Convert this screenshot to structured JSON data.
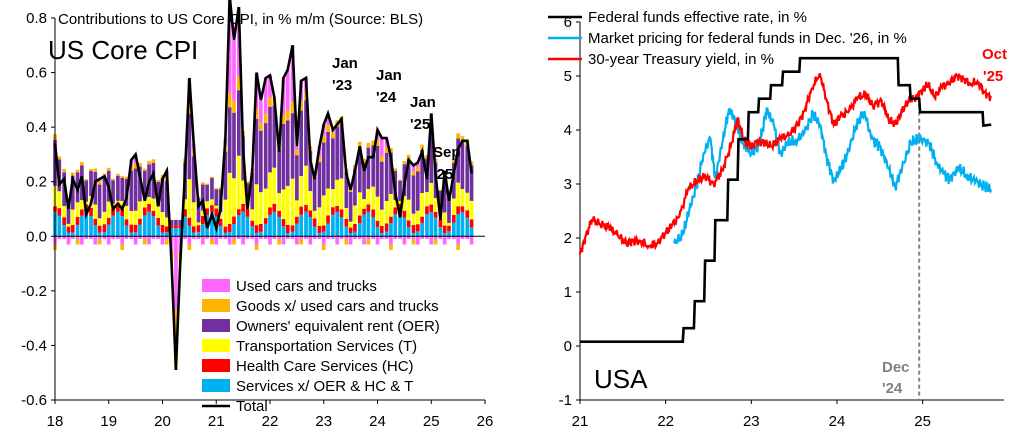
{
  "chart_data": [
    {
      "type": "bar",
      "title": "US Core CPI",
      "subtitle": "Contributions to US Core CPI, in % m/m (Source: BLS)",
      "ylim": [
        -0.6,
        0.8
      ],
      "yticks": [
        "0.8",
        "0.6",
        "0.4",
        "0.2",
        "0.0",
        "-0.2",
        "-0.4",
        "-0.6"
      ],
      "xticks": [
        "18",
        "19",
        "20",
        "21",
        "22",
        "23",
        "24",
        "25",
        "26"
      ],
      "x_range": [
        2018.0,
        2026.0
      ],
      "stacked": true,
      "series": [
        {
          "name": "Used cars and trucks",
          "color": "#ff66ff"
        },
        {
          "name": "Goods x/ used cars and trucks",
          "color": "#ffb400"
        },
        {
          "name": "Owners' equivalent rent (OER)",
          "color": "#7030a0"
        },
        {
          "name": "Transportation Services (T)",
          "color": "#ffff00"
        },
        {
          "name": "Health Care Services (HC)",
          "color": "#ff0000"
        },
        {
          "name": "Services x/ OER & HC & T",
          "color": "#00b0f0"
        },
        {
          "name": "Total",
          "color": "#000000"
        }
      ],
      "total_line": [
        [
          "2018.00",
          0.34
        ],
        [
          "2018.08",
          0.19
        ],
        [
          "2018.17",
          0.21
        ],
        [
          "2018.25",
          0.1
        ],
        [
          "2018.33",
          0.21
        ],
        [
          "2018.42",
          0.17
        ],
        [
          "2018.50",
          0.22
        ],
        [
          "2018.58",
          0.08
        ],
        [
          "2018.67",
          0.12
        ],
        [
          "2018.75",
          0.2
        ],
        [
          "2018.83",
          0.21
        ],
        [
          "2018.92",
          0.22
        ],
        [
          "2019.00",
          0.18
        ],
        [
          "2019.08",
          0.1
        ],
        [
          "2019.17",
          0.12
        ],
        [
          "2019.25",
          0.1
        ],
        [
          "2019.33",
          0.14
        ],
        [
          "2019.42",
          0.28
        ],
        [
          "2019.50",
          0.3
        ],
        [
          "2019.58",
          0.22
        ],
        [
          "2019.67",
          0.13
        ],
        [
          "2019.75",
          0.2
        ],
        [
          "2019.83",
          0.23
        ],
        [
          "2019.92",
          0.11
        ],
        [
          "2020.00",
          0.21
        ],
        [
          "2020.08",
          0.24
        ],
        [
          "2020.17",
          -0.1
        ],
        [
          "2020.25",
          -0.49
        ],
        [
          "2020.33",
          -0.1
        ],
        [
          "2020.42",
          0.24
        ],
        [
          "2020.50",
          0.58
        ],
        [
          "2020.58",
          0.34
        ],
        [
          "2020.67",
          0.11
        ],
        [
          "2020.75",
          0.13
        ],
        [
          "2020.83",
          0.03
        ],
        [
          "2020.92",
          0.08
        ],
        [
          "2021.00",
          0.03
        ],
        [
          "2021.08",
          0.1
        ],
        [
          "2021.17",
          0.36
        ],
        [
          "2021.25",
          0.88
        ],
        [
          "2021.33",
          0.72
        ],
        [
          "2021.42",
          0.84
        ],
        [
          "2021.50",
          0.32
        ],
        [
          "2021.58",
          0.1
        ],
        [
          "2021.67",
          0.24
        ],
        [
          "2021.75",
          0.6
        ],
        [
          "2021.83",
          0.5
        ],
        [
          "2021.92",
          0.58
        ],
        [
          "2022.00",
          0.59
        ],
        [
          "2022.08",
          0.51
        ],
        [
          "2022.17",
          0.31
        ],
        [
          "2022.25",
          0.58
        ],
        [
          "2022.33",
          0.61
        ],
        [
          "2022.42",
          0.7
        ],
        [
          "2022.50",
          0.33
        ],
        [
          "2022.58",
          0.57
        ],
        [
          "2022.67",
          0.58
        ],
        [
          "2022.75",
          0.28
        ],
        [
          "2022.83",
          0.21
        ],
        [
          "2022.92",
          0.33
        ],
        [
          "2023.00",
          0.41
        ],
        [
          "2023.08",
          0.45
        ],
        [
          "2023.17",
          0.39
        ],
        [
          "2023.25",
          0.41
        ],
        [
          "2023.33",
          0.43
        ],
        [
          "2023.42",
          0.23
        ],
        [
          "2023.50",
          0.17
        ],
        [
          "2023.58",
          0.24
        ],
        [
          "2023.67",
          0.33
        ],
        [
          "2023.75",
          0.24
        ],
        [
          "2023.83",
          0.29
        ],
        [
          "2023.92",
          0.29
        ],
        [
          "2024.00",
          0.39
        ],
        [
          "2024.08",
          0.36
        ],
        [
          "2024.17",
          0.36
        ],
        [
          "2024.25",
          0.29
        ],
        [
          "2024.33",
          0.16
        ],
        [
          "2024.42",
          0.07
        ],
        [
          "2024.50",
          0.19
        ],
        [
          "2024.58",
          0.28
        ],
        [
          "2024.67",
          0.26
        ],
        [
          "2024.75",
          0.27
        ],
        [
          "2024.83",
          0.31
        ],
        [
          "2024.92",
          0.21
        ],
        [
          "2025.00",
          0.45
        ],
        [
          "2025.08",
          0.23
        ],
        [
          "2025.17",
          0.06
        ],
        [
          "2025.25",
          0.24
        ],
        [
          "2025.33",
          0.13
        ],
        [
          "2025.42",
          0.23
        ],
        [
          "2025.50",
          0.32
        ],
        [
          "2025.58",
          0.35
        ],
        [
          "2025.67",
          0.35
        ],
        [
          "2025.75",
          0.23
        ]
      ],
      "annotations": [
        {
          "text": "Jan",
          "text2": "'23"
        },
        {
          "text": "Jan",
          "text2": "'24"
        },
        {
          "text": "Jan",
          "text2": "'25"
        },
        {
          "text": "Sep",
          "text2": "'25"
        }
      ]
    },
    {
      "type": "line",
      "title": "USA",
      "ylim": [
        -1,
        6
      ],
      "yticks": [
        "6",
        "5",
        "4",
        "3",
        "2",
        "1",
        "0",
        "-1"
      ],
      "xticks": [
        "21",
        "22",
        "23",
        "24",
        "25"
      ],
      "x_range": [
        2021.0,
        2025.95
      ],
      "series": [
        {
          "name": "Federal funds effective rate, in %",
          "color": "#000000",
          "values": [
            [
              "2021.00",
              0.08
            ],
            [
              "2021.90",
              0.08
            ],
            [
              "2022.20",
              0.08
            ],
            [
              "2022.21",
              0.33
            ],
            [
              "2022.33",
              0.33
            ],
            [
              "2022.34",
              0.83
            ],
            [
              "2022.45",
              0.83
            ],
            [
              "2022.46",
              1.58
            ],
            [
              "2022.57",
              1.58
            ],
            [
              "2022.58",
              2.33
            ],
            [
              "2022.72",
              2.33
            ],
            [
              "2022.73",
              3.08
            ],
            [
              "2022.84",
              3.08
            ],
            [
              "2022.85",
              3.83
            ],
            [
              "2022.96",
              3.83
            ],
            [
              "2022.97",
              4.33
            ],
            [
              "2023.08",
              4.33
            ],
            [
              "2023.09",
              4.58
            ],
            [
              "2023.22",
              4.58
            ],
            [
              "2023.23",
              4.83
            ],
            [
              "2023.36",
              4.83
            ],
            [
              "2023.37",
              5.08
            ],
            [
              "2023.56",
              5.08
            ],
            [
              "2023.57",
              5.33
            ],
            [
              "2024.71",
              5.33
            ],
            [
              "2024.72",
              4.83
            ],
            [
              "2024.85",
              4.83
            ],
            [
              "2024.86",
              4.58
            ],
            [
              "2024.96",
              4.58
            ],
            [
              "2024.97",
              4.33
            ],
            [
              "2025.70",
              4.33
            ],
            [
              "2025.71",
              4.08
            ],
            [
              "2025.80",
              4.1
            ]
          ]
        },
        {
          "name": "Market pricing for federal funds in Dec. '26, in %",
          "color": "#00b0f0",
          "values": [
            [
              "2022.10",
              1.9
            ],
            [
              "2022.20",
              2.05
            ],
            [
              "2022.28",
              2.55
            ],
            [
              "2022.36",
              2.95
            ],
            [
              "2022.44",
              3.55
            ],
            [
              "2022.52",
              3.85
            ],
            [
              "2022.58",
              3.1
            ],
            [
              "2022.66",
              3.75
            ],
            [
              "2022.74",
              4.4
            ],
            [
              "2022.82",
              4.15
            ],
            [
              "2022.90",
              3.75
            ],
            [
              "2023.00",
              3.55
            ],
            [
              "2023.10",
              3.75
            ],
            [
              "2023.18",
              4.4
            ],
            [
              "2023.26",
              4.1
            ],
            [
              "2023.34",
              3.55
            ],
            [
              "2023.42",
              3.75
            ],
            [
              "2023.52",
              3.8
            ],
            [
              "2023.62",
              3.95
            ],
            [
              "2023.72",
              4.3
            ],
            [
              "2023.80",
              4.1
            ],
            [
              "2023.88",
              3.5
            ],
            [
              "2023.96",
              3.05
            ],
            [
              "2024.04",
              3.25
            ],
            [
              "2024.12",
              3.55
            ],
            [
              "2024.22",
              4.05
            ],
            [
              "2024.32",
              4.35
            ],
            [
              "2024.40",
              3.85
            ],
            [
              "2024.50",
              3.7
            ],
            [
              "2024.60",
              3.3
            ],
            [
              "2024.68",
              2.95
            ],
            [
              "2024.76",
              3.3
            ],
            [
              "2024.86",
              3.75
            ],
            [
              "2024.96",
              3.85
            ],
            [
              "2025.08",
              3.75
            ],
            [
              "2025.16",
              3.4
            ],
            [
              "2025.24",
              3.2
            ],
            [
              "2025.32",
              3.1
            ],
            [
              "2025.42",
              3.3
            ],
            [
              "2025.52",
              3.15
            ],
            [
              "2025.62",
              3.05
            ],
            [
              "2025.72",
              2.95
            ],
            [
              "2025.80",
              2.9
            ]
          ]
        },
        {
          "name": "30-year Treasury yield, in %",
          "color": "#ff0000",
          "values": [
            [
              "2021.00",
              1.7
            ],
            [
              "2021.06",
              2.0
            ],
            [
              "2021.14",
              2.35
            ],
            [
              "2021.24",
              2.25
            ],
            [
              "2021.34",
              2.2
            ],
            [
              "2021.44",
              2.05
            ],
            [
              "2021.54",
              1.9
            ],
            [
              "2021.62",
              1.95
            ],
            [
              "2021.70",
              1.95
            ],
            [
              "2021.80",
              1.85
            ],
            [
              "2021.90",
              1.9
            ],
            [
              "2022.00",
              2.1
            ],
            [
              "2022.08",
              2.25
            ],
            [
              "2022.16",
              2.4
            ],
            [
              "2022.26",
              2.9
            ],
            [
              "2022.36",
              3.05
            ],
            [
              "2022.46",
              3.15
            ],
            [
              "2022.56",
              3.0
            ],
            [
              "2022.66",
              3.25
            ],
            [
              "2022.76",
              3.7
            ],
            [
              "2022.84",
              4.2
            ],
            [
              "2022.92",
              3.8
            ],
            [
              "2023.00",
              3.7
            ],
            [
              "2023.08",
              3.8
            ],
            [
              "2023.16",
              3.75
            ],
            [
              "2023.24",
              3.7
            ],
            [
              "2023.34",
              3.85
            ],
            [
              "2023.44",
              3.9
            ],
            [
              "2023.54",
              4.1
            ],
            [
              "2023.62",
              4.35
            ],
            [
              "2023.70",
              4.75
            ],
            [
              "2023.80",
              5.05
            ],
            [
              "2023.88",
              4.55
            ],
            [
              "2023.96",
              4.1
            ],
            [
              "2024.04",
              4.25
            ],
            [
              "2024.14",
              4.35
            ],
            [
              "2024.24",
              4.6
            ],
            [
              "2024.34",
              4.65
            ],
            [
              "2024.42",
              4.45
            ],
            [
              "2024.52",
              4.55
            ],
            [
              "2024.60",
              4.2
            ],
            [
              "2024.68",
              4.1
            ],
            [
              "2024.76",
              4.35
            ],
            [
              "2024.84",
              4.55
            ],
            [
              "2024.92",
              4.6
            ],
            [
              "2025.00",
              4.75
            ],
            [
              "2025.06",
              4.85
            ],
            [
              "2025.14",
              4.6
            ],
            [
              "2025.22",
              4.8
            ],
            [
              "2025.30",
              4.85
            ],
            [
              "2025.40",
              5.0
            ],
            [
              "2025.48",
              4.95
            ],
            [
              "2025.56",
              4.85
            ],
            [
              "2025.64",
              4.9
            ],
            [
              "2025.72",
              4.7
            ],
            [
              "2025.80",
              4.6
            ]
          ]
        }
      ],
      "annotations": [
        {
          "text": "Oct",
          "text2": "'25",
          "color": "#ff0000"
        },
        {
          "text": "Dec",
          "text2": "'24",
          "color": "#808080"
        }
      ]
    }
  ]
}
